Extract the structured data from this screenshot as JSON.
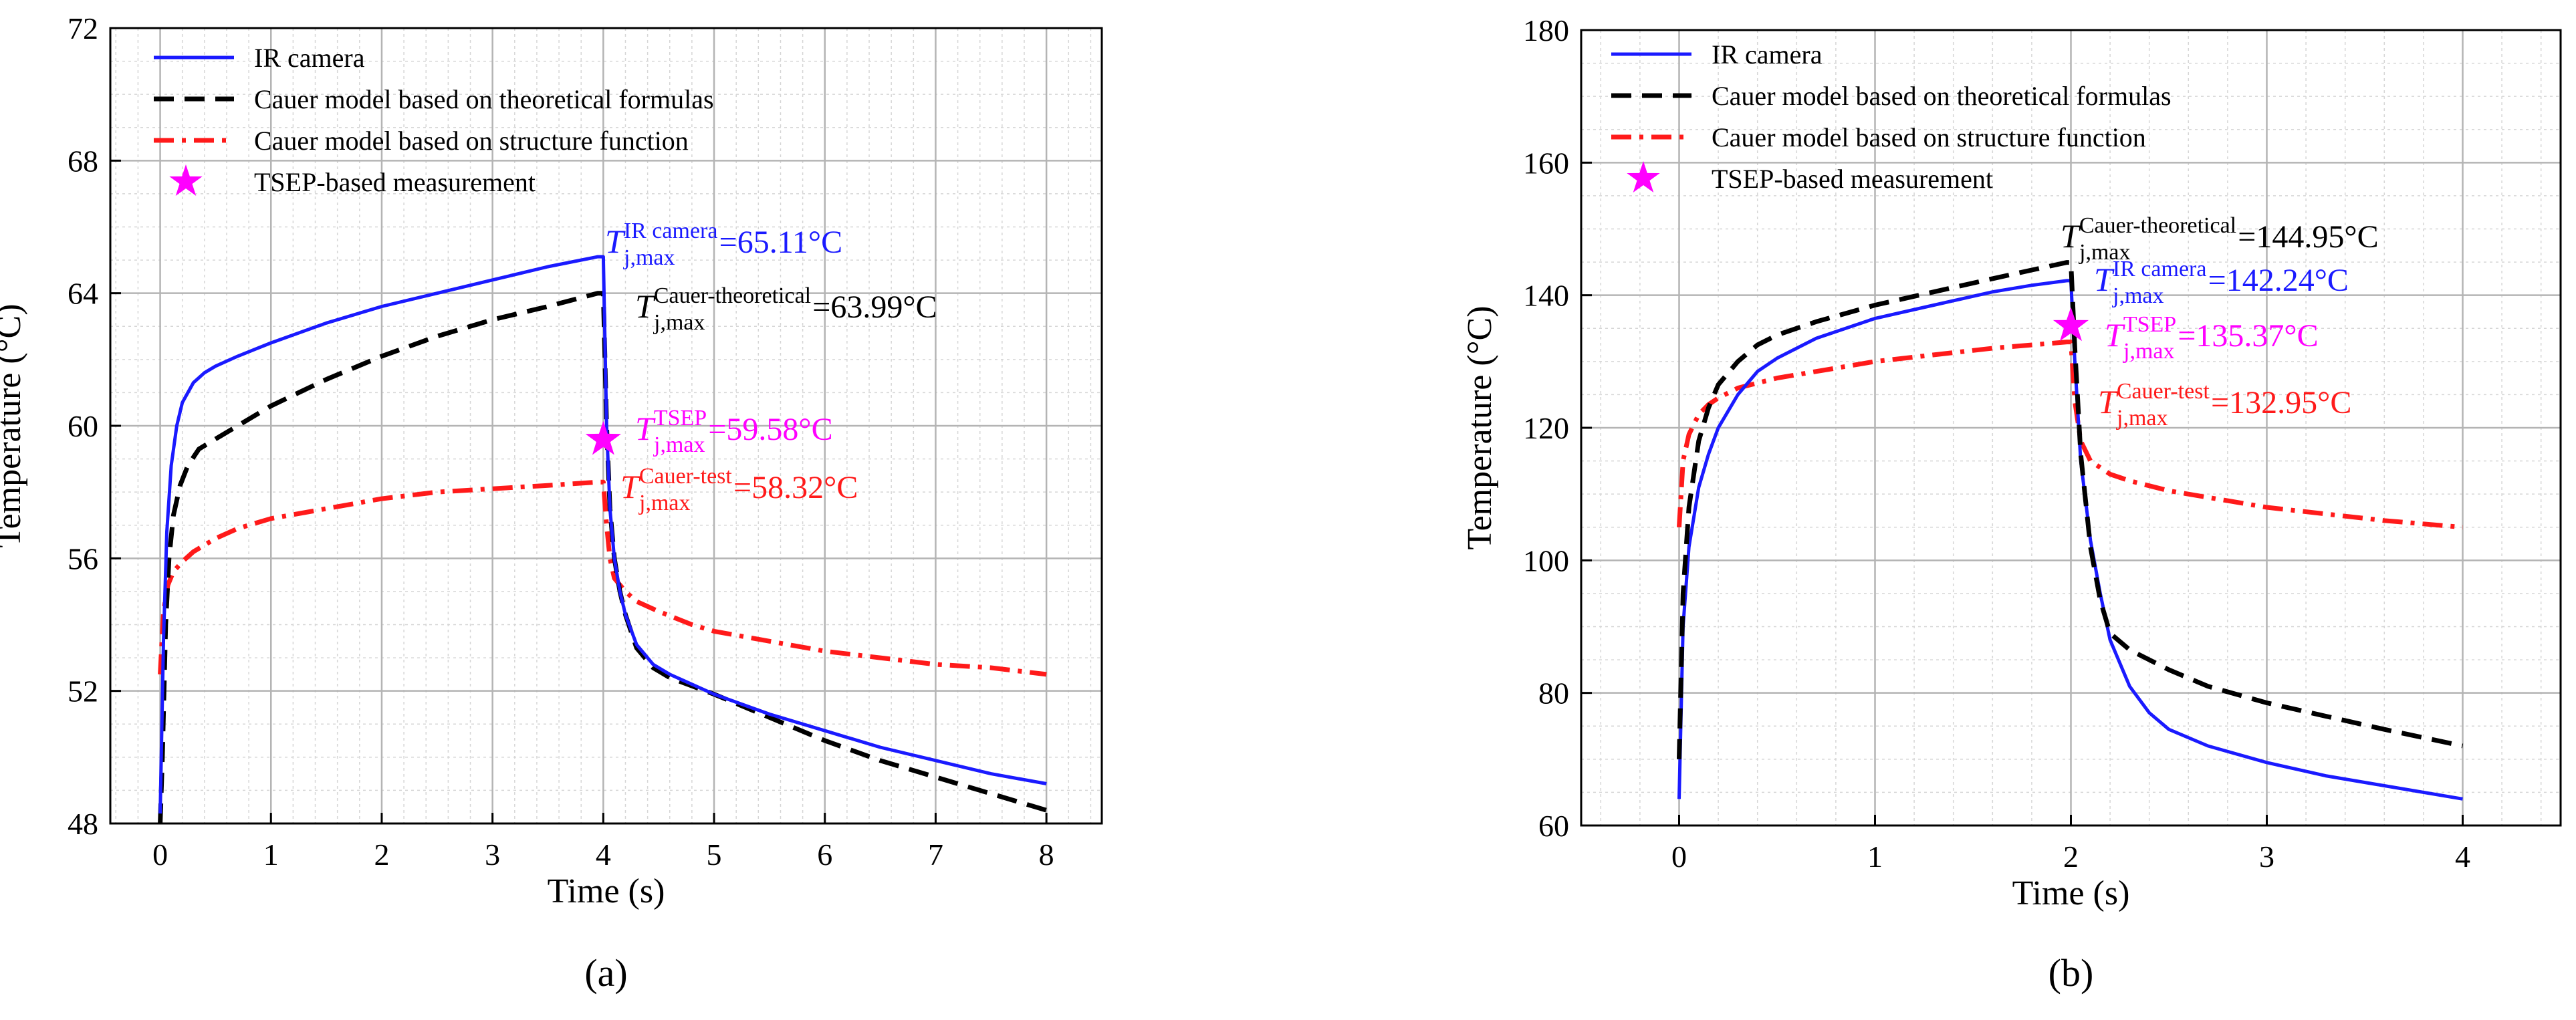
{
  "chart_data": [
    {
      "id": "a",
      "panel_label": "(a)",
      "type": "line",
      "xlabel": "Time (s)",
      "ylabel": "Temperature (°C)",
      "xlim": [
        -0.45,
        8.5
      ],
      "ylim": [
        48,
        72
      ],
      "xticks": [
        0,
        1,
        2,
        3,
        4,
        5,
        6,
        7,
        8
      ],
      "yticks": [
        48,
        52,
        56,
        60,
        64,
        68,
        72
      ],
      "grid": true,
      "legend_position": "top-left",
      "legend": [
        {
          "label": "IR camera",
          "style": "solid",
          "color": "#1a1aff"
        },
        {
          "label": "Cauer model based on theoretical formulas",
          "style": "dashed",
          "color": "#000000"
        },
        {
          "label": "Cauer model based on structure function",
          "style": "dashdot",
          "color": "#ff1a1a"
        },
        {
          "label": "TSEP-based measurement",
          "style": "star",
          "color": "#ff00ff"
        }
      ],
      "series": [
        {
          "name": "IR camera",
          "color": "#1a1aff",
          "style": "solid",
          "x": [
            0,
            0.03,
            0.06,
            0.1,
            0.15,
            0.2,
            0.3,
            0.4,
            0.5,
            0.7,
            1.0,
            1.5,
            2.0,
            2.5,
            3.0,
            3.5,
            3.95,
            4.0,
            4.03,
            4.06,
            4.1,
            4.15,
            4.2,
            4.3,
            4.45,
            4.6,
            5.0,
            5.5,
            6.0,
            6.5,
            7.0,
            7.5,
            8.0
          ],
          "values": [
            48.3,
            53.5,
            56.8,
            58.8,
            60.0,
            60.7,
            61.3,
            61.6,
            61.8,
            62.1,
            62.5,
            63.1,
            63.6,
            64.0,
            64.4,
            64.8,
            65.1,
            65.1,
            60.0,
            57.5,
            56.0,
            55.0,
            54.3,
            53.4,
            52.8,
            52.5,
            51.9,
            51.3,
            50.8,
            50.3,
            49.9,
            49.5,
            49.2
          ]
        },
        {
          "name": "Cauer model based on theoretical formulas",
          "color": "#000000",
          "style": "dashed",
          "x": [
            0,
            0.02,
            0.05,
            0.08,
            0.12,
            0.18,
            0.25,
            0.35,
            0.5,
            0.7,
            1.0,
            1.5,
            2.0,
            2.5,
            3.0,
            3.5,
            3.95,
            4.0,
            4.03,
            4.06,
            4.1,
            4.15,
            4.2,
            4.3,
            4.45,
            4.6,
            5.0,
            5.5,
            6.0,
            6.5,
            7.0,
            7.5,
            8.0
          ],
          "values": [
            48.0,
            50.0,
            54.0,
            56.0,
            57.3,
            58.2,
            58.8,
            59.3,
            59.6,
            60.0,
            60.6,
            61.4,
            62.1,
            62.7,
            63.2,
            63.6,
            64.0,
            64.0,
            60.0,
            57.5,
            56.0,
            55.0,
            54.3,
            53.3,
            52.7,
            52.4,
            51.9,
            51.2,
            50.5,
            49.9,
            49.4,
            48.9,
            48.4
          ]
        },
        {
          "name": "Cauer model based on structure function",
          "color": "#ff1a1a",
          "style": "dashdot",
          "x": [
            0,
            0.03,
            0.07,
            0.12,
            0.2,
            0.3,
            0.5,
            0.7,
            1.0,
            1.5,
            2.0,
            2.5,
            3.0,
            3.5,
            3.95,
            4.0,
            4.03,
            4.06,
            4.1,
            4.2,
            4.3,
            4.5,
            4.8,
            5.0,
            5.5,
            6.0,
            6.5,
            7.0,
            7.5,
            8.0
          ],
          "values": [
            52.5,
            54.4,
            55.2,
            55.6,
            55.9,
            56.2,
            56.6,
            56.9,
            57.2,
            57.5,
            57.8,
            58.0,
            58.1,
            58.2,
            58.3,
            58.3,
            57.0,
            56.0,
            55.4,
            55.0,
            54.7,
            54.4,
            54.0,
            53.8,
            53.5,
            53.2,
            53.0,
            52.8,
            52.7,
            52.5
          ]
        }
      ],
      "markers": [
        {
          "name": "TSEP-based measurement",
          "x": 4.0,
          "y": 59.58,
          "color": "#ff00ff"
        }
      ],
      "annotations": [
        {
          "sym": "T",
          "sup": "IR camera",
          "sub": "j,max",
          "value": "=65.11°C",
          "color": "#1a1aff"
        },
        {
          "sym": "T",
          "sup": "Cauer-theoretical",
          "sub": "j,max",
          "value": "=63.99°C",
          "color": "#000000"
        },
        {
          "sym": "T",
          "sup": "TSEP",
          "sub": "j,max",
          "value": "=59.58°C",
          "color": "#ff00ff"
        },
        {
          "sym": "T",
          "sup": "Cauer-test",
          "sub": "j,max",
          "value": "=58.32°C",
          "color": "#ff1a1a"
        }
      ]
    },
    {
      "id": "b",
      "panel_label": "(b)",
      "type": "line",
      "xlabel": "Time (s)",
      "ylabel": "Temperature (°C)",
      "xlim": [
        -0.5,
        4.5
      ],
      "ylim": [
        60,
        180
      ],
      "xticks": [
        0,
        1,
        2,
        3,
        4
      ],
      "yticks": [
        60,
        80,
        100,
        120,
        140,
        160,
        180
      ],
      "grid": true,
      "legend_position": "top-left",
      "legend": [
        {
          "label": "IR camera",
          "style": "solid",
          "color": "#1a1aff"
        },
        {
          "label": "Cauer model based on theoretical formulas",
          "style": "dashed",
          "color": "#000000"
        },
        {
          "label": "Cauer model based on structure function",
          "style": "dashdot",
          "color": "#ff1a1a"
        },
        {
          "label": "TSEP-based measurement",
          "style": "star",
          "color": "#ff00ff"
        }
      ],
      "series": [
        {
          "name": "IR camera",
          "color": "#1a1aff",
          "style": "solid",
          "x": [
            0,
            0.02,
            0.05,
            0.1,
            0.15,
            0.2,
            0.3,
            0.4,
            0.5,
            0.7,
            1.0,
            1.3,
            1.6,
            1.8,
            1.98,
            2.0,
            2.02,
            2.05,
            2.1,
            2.15,
            2.2,
            2.3,
            2.4,
            2.5,
            2.7,
            3.0,
            3.3,
            3.6,
            4.0
          ],
          "values": [
            64,
            90,
            102,
            111,
            116,
            120,
            125,
            128.5,
            130.5,
            133.5,
            136.5,
            138.5,
            140.5,
            141.5,
            142.2,
            142.2,
            130,
            115,
            103,
            95,
            88,
            81,
            77,
            74.5,
            72,
            69.5,
            67.5,
            66,
            64
          ]
        },
        {
          "name": "Cauer model based on theoretical formulas",
          "color": "#000000",
          "style": "dashed",
          "x": [
            0,
            0.02,
            0.05,
            0.1,
            0.15,
            0.2,
            0.3,
            0.4,
            0.5,
            0.7,
            1.0,
            1.3,
            1.6,
            1.8,
            1.98,
            2.0,
            2.02,
            2.05,
            2.1,
            2.15,
            2.2,
            2.3,
            2.5,
            2.7,
            3.0,
            3.3,
            3.6,
            4.0
          ],
          "values": [
            70,
            95,
            108,
            118,
            123,
            126.5,
            130,
            132.5,
            134,
            136,
            138.5,
            140.5,
            142.5,
            143.8,
            144.95,
            144.95,
            132,
            116,
            102,
            94,
            89,
            86.5,
            83.5,
            81,
            78.5,
            76.5,
            74.5,
            72
          ]
        },
        {
          "name": "Cauer model based on structure function",
          "color": "#ff1a1a",
          "style": "dashdot",
          "x": [
            0,
            0.02,
            0.05,
            0.1,
            0.15,
            0.2,
            0.3,
            0.5,
            0.8,
            1.0,
            1.3,
            1.6,
            1.98,
            2.0,
            2.02,
            2.05,
            2.1,
            2.2,
            2.3,
            2.5,
            2.8,
            3.0,
            3.3,
            3.6,
            4.0
          ],
          "values": [
            105,
            115,
            119,
            122,
            123.5,
            124.5,
            126,
            127.5,
            129,
            130,
            131,
            132,
            132.95,
            132.95,
            124,
            118,
            115,
            113,
            112,
            110.5,
            109,
            108,
            107,
            106,
            105
          ]
        }
      ],
      "markers": [
        {
          "name": "TSEP-based measurement",
          "x": 2.0,
          "y": 135.37,
          "color": "#ff00ff"
        }
      ],
      "annotations": [
        {
          "sym": "T",
          "sup": "Cauer-theoretical",
          "sub": "j,max",
          "value": "=144.95°C",
          "color": "#000000"
        },
        {
          "sym": "T",
          "sup": "IR camera",
          "sub": "j,max",
          "value": "=142.24°C",
          "color": "#1a1aff"
        },
        {
          "sym": "T",
          "sup": "TSEP",
          "sub": "j,max",
          "value": "=135.37°C",
          "color": "#ff00ff"
        },
        {
          "sym": "T",
          "sup": "Cauer-test",
          "sub": "j,max",
          "value": "=132.95°C",
          "color": "#ff1a1a"
        }
      ]
    }
  ]
}
